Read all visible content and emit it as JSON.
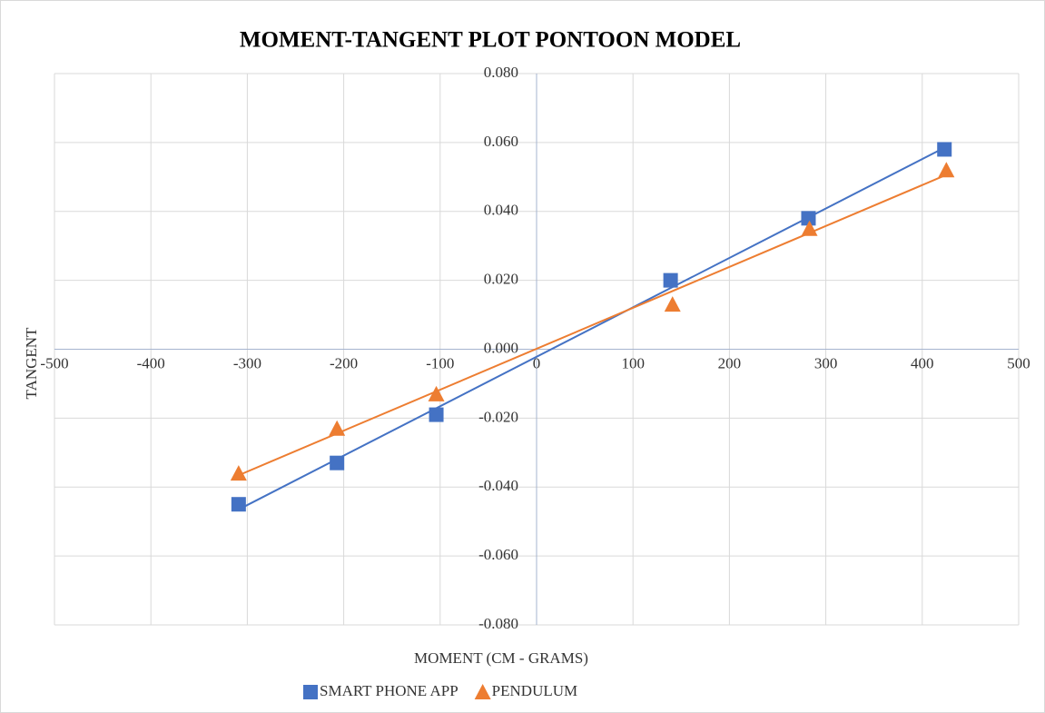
{
  "chart_data": {
    "type": "scatter",
    "title": "MOMENT-TANGENT PLOT PONTOON MODEL",
    "x_label": "MOMENT (CM - GRAMS)",
    "y_label": "TANGENT",
    "series": [
      {
        "name": "SMART PHONE APP",
        "color": "#4472c4",
        "marker": "square",
        "x": [
          -309,
          -207,
          -104,
          139,
          282,
          423
        ],
        "values": [
          -0.045,
          -0.033,
          -0.019,
          0.02,
          0.038,
          0.058
        ]
      },
      {
        "name": "PENDULUM",
        "color": "#ed7d31",
        "marker": "triangle",
        "x": [
          -309,
          -207,
          -104,
          141,
          283,
          425
        ],
        "values": [
          -0.036,
          -0.023,
          -0.013,
          0.013,
          0.035,
          0.052
        ]
      }
    ],
    "trendline": "linear",
    "xlim": [
      -500,
      500
    ],
    "xticks": [
      -500,
      -400,
      -300,
      -200,
      -100,
      0,
      100,
      200,
      300,
      400,
      500
    ],
    "ylim": [
      -0.08,
      0.08
    ],
    "yticks": [
      {
        "value": -0.08,
        "label": "-0.080"
      },
      {
        "value": -0.06,
        "label": "-0.060"
      },
      {
        "value": -0.04,
        "label": "-0.040"
      },
      {
        "value": -0.02,
        "label": "-0.020"
      },
      {
        "value": 0,
        "label": "0.000"
      },
      {
        "value": 0.02,
        "label": "0.020"
      },
      {
        "value": 0.04,
        "label": "0.040"
      },
      {
        "value": 0.06,
        "label": "0.060"
      },
      {
        "value": 0.08,
        "label": "0.080"
      }
    ],
    "grid": true,
    "legend": "bottom"
  }
}
